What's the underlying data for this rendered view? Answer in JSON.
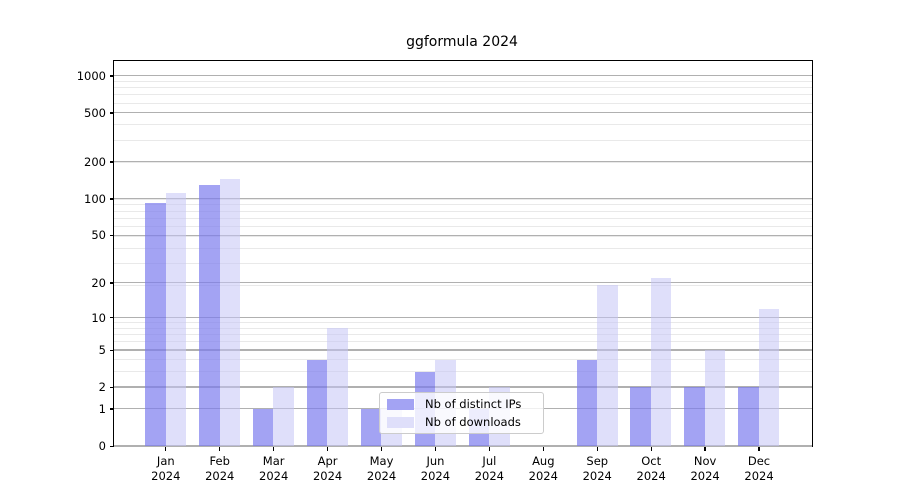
{
  "title": "ggformula 2024",
  "legend": {
    "items": [
      {
        "label": "Nb of distinct IPs",
        "swatch_color": "#a3a3f3"
      },
      {
        "label": "Nb of downloads",
        "swatch_color": "#dfdffa"
      }
    ]
  },
  "chart_data": {
    "type": "bar",
    "title": "ggformula 2024",
    "xlabel": "",
    "ylabel": "",
    "categories": [
      "Jan 2024",
      "Feb 2024",
      "Mar 2024",
      "Apr 2024",
      "May 2024",
      "Jun 2024",
      "Jul 2024",
      "Aug 2024",
      "Sep 2024",
      "Oct 2024",
      "Nov 2024",
      "Dec 2024"
    ],
    "x_tick_line1": [
      "Jan",
      "Feb",
      "Mar",
      "Apr",
      "May",
      "Jun",
      "Jul",
      "Aug",
      "Sep",
      "Oct",
      "Nov",
      "Dec"
    ],
    "x_tick_line2": [
      "2024",
      "2024",
      "2024",
      "2024",
      "2024",
      "2024",
      "2024",
      "2024",
      "2024",
      "2024",
      "2024",
      "2024"
    ],
    "series": [
      {
        "name": "Nb of distinct IPs",
        "values": [
          93,
          129,
          1,
          4,
          1,
          3,
          1,
          0,
          4,
          2,
          2,
          2
        ],
        "fill": "rgba(124,124,238,0.70)",
        "solid_hex": "#a3a3f3"
      },
      {
        "name": "Nb of downloads",
        "values": [
          111,
          144,
          2,
          8,
          1,
          4,
          2,
          0,
          19,
          22,
          5,
          12
        ],
        "fill": "rgba(197,197,246,0.55)",
        "solid_hex": "#dfdffa"
      }
    ],
    "yscale": "log1p",
    "yticks": [
      0,
      1,
      2,
      5,
      10,
      20,
      50,
      100,
      200,
      500,
      1000
    ],
    "minor_yticks": [
      3,
      4,
      6,
      7,
      8,
      9,
      19,
      29,
      39,
      49,
      59,
      69,
      79,
      89,
      99,
      199,
      299,
      399,
      499,
      599,
      699,
      799,
      899
    ],
    "ylim": [
      0,
      1300
    ],
    "grid": true,
    "grid_major_color": "#b0b0b0",
    "grid_minor_color": "#e9e9e9",
    "background_color": "#ffffff",
    "legend_position": "lower center, inside axes, overlapping Jul-Aug"
  }
}
